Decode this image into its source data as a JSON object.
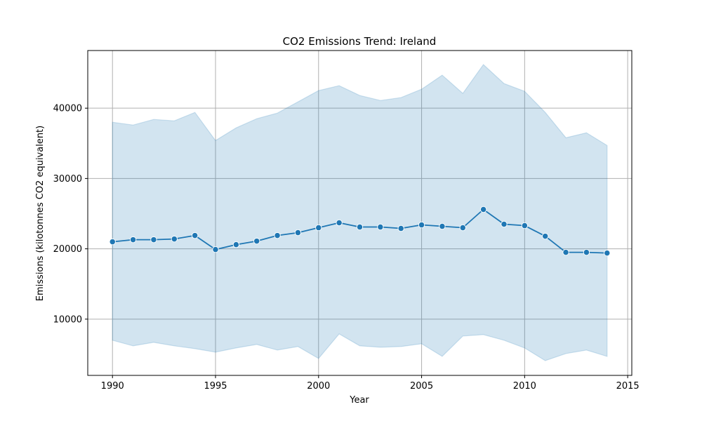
{
  "chart_data": {
    "type": "line",
    "title": "CO2 Emissions Trend: Ireland",
    "xlabel": "Year",
    "ylabel": "Emissions (kilotonnes CO2 equivalent)",
    "xlim": [
      1988.8,
      2015.2
    ],
    "ylim": [
      2000,
      48200
    ],
    "xticks": [
      1990,
      1995,
      2000,
      2005,
      2010,
      2015
    ],
    "yticks": [
      10000,
      20000,
      30000,
      40000
    ],
    "grid": true,
    "colors": {
      "line": "#1f77b4",
      "band": "#1f77b4",
      "grid": "#b0b0b0"
    },
    "x": [
      1990,
      1991,
      1992,
      1993,
      1994,
      1995,
      1996,
      1997,
      1998,
      1999,
      2000,
      2001,
      2002,
      2003,
      2004,
      2005,
      2006,
      2007,
      2008,
      2009,
      2010,
      2011,
      2012,
      2013,
      2014
    ],
    "series": [
      {
        "values": [
          21000,
          21300,
          21300,
          21400,
          21900,
          19900,
          20600,
          21100,
          21900,
          22300,
          23000,
          23700,
          23100,
          23100,
          22900,
          23400,
          23200,
          23000,
          25600,
          23500,
          23300,
          21800,
          19500,
          19500,
          19400
        ],
        "band_upper": [
          38000,
          37600,
          38400,
          38200,
          39400,
          35400,
          37200,
          38500,
          39300,
          40900,
          42500,
          43200,
          41800,
          41100,
          41500,
          42700,
          44700,
          42100,
          46200,
          43500,
          42400,
          39400,
          35800,
          36500,
          34700
        ],
        "band_lower": [
          7000,
          6200,
          6700,
          6200,
          5800,
          5300,
          5900,
          6400,
          5600,
          6100,
          4400,
          7900,
          6200,
          6000,
          6100,
          6500,
          4700,
          7600,
          7800,
          7000,
          5900,
          4100,
          5100,
          5600,
          4700
        ]
      }
    ]
  }
}
